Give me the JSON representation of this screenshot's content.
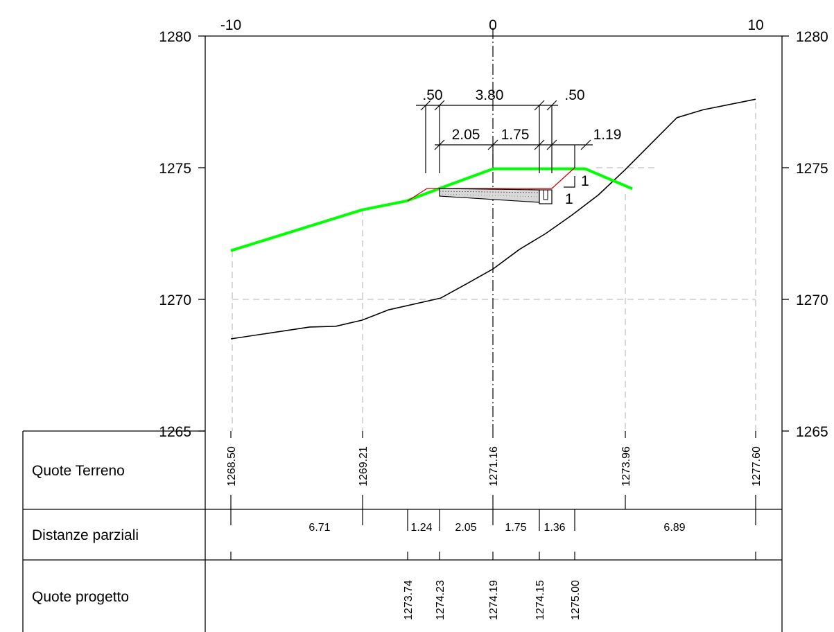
{
  "colors": {
    "background": "#ffffff",
    "ink": "#000000",
    "project_profile": "#00ff00",
    "construction_outline": "#cc0000",
    "guide_lines": "#b0b0b0"
  },
  "axes": {
    "x_ticks": [
      "-10",
      "0",
      "10"
    ],
    "y_ticks_left": [
      "1280",
      "1275",
      "1270",
      "1265"
    ],
    "y_ticks_right": [
      "1280",
      "1275",
      "1270",
      "1265"
    ]
  },
  "dimensions": {
    "top": [
      ".50",
      "3.80",
      ".50"
    ],
    "middle": [
      "2.05",
      "1.75",
      "1.19"
    ],
    "slope": [
      "1",
      "1"
    ]
  },
  "table": {
    "rows": [
      {
        "label": "Quote Terreno",
        "values": [
          "1268.50",
          "1269.21",
          "1271.16",
          "1273.96",
          "1277.60"
        ]
      },
      {
        "label": "Distanze parziali",
        "values": [
          "6.71",
          "1.24",
          "2.05",
          "1.75",
          "1.36",
          "6.89"
        ]
      },
      {
        "label": "Quote progetto",
        "values": [
          "1273.74",
          "1274.23",
          "1274.19",
          "1274.15",
          "1275.00"
        ]
      }
    ]
  },
  "chart_data": {
    "type": "line",
    "x_range": [
      -10,
      10
    ],
    "y_range": [
      1265,
      1280
    ],
    "series": [
      {
        "points": [
          [
            -10,
            1268.5
          ],
          [
            -7,
            1268.95
          ],
          [
            -6,
            1268.98
          ],
          [
            -5,
            1269.21
          ],
          [
            -4,
            1269.6
          ],
          [
            -2,
            1270.05
          ],
          [
            -1,
            1270.6
          ],
          [
            0,
            1271.16
          ],
          [
            1,
            1271.9
          ],
          [
            2,
            1272.5
          ],
          [
            3,
            1273.2
          ],
          [
            4,
            1273.96
          ],
          [
            5,
            1274.9
          ],
          [
            6,
            1275.9
          ],
          [
            7,
            1276.9
          ],
          [
            8,
            1277.2
          ],
          [
            10,
            1277.6
          ]
        ]
      },
      {
        "points": [
          [
            -10,
            1271.85
          ],
          [
            -5,
            1273.4
          ],
          [
            -3.3,
            1273.74
          ],
          [
            -2,
            1274.23
          ],
          [
            0,
            1274.96
          ],
          [
            3.5,
            1274.96
          ],
          [
            5.3,
            1274.2
          ]
        ]
      }
    ],
    "x_stations": [
      -10,
      -5,
      -3.29,
      -2.05,
      0,
      1.75,
      3.11,
      5,
      10
    ],
    "grid": "dashed"
  }
}
